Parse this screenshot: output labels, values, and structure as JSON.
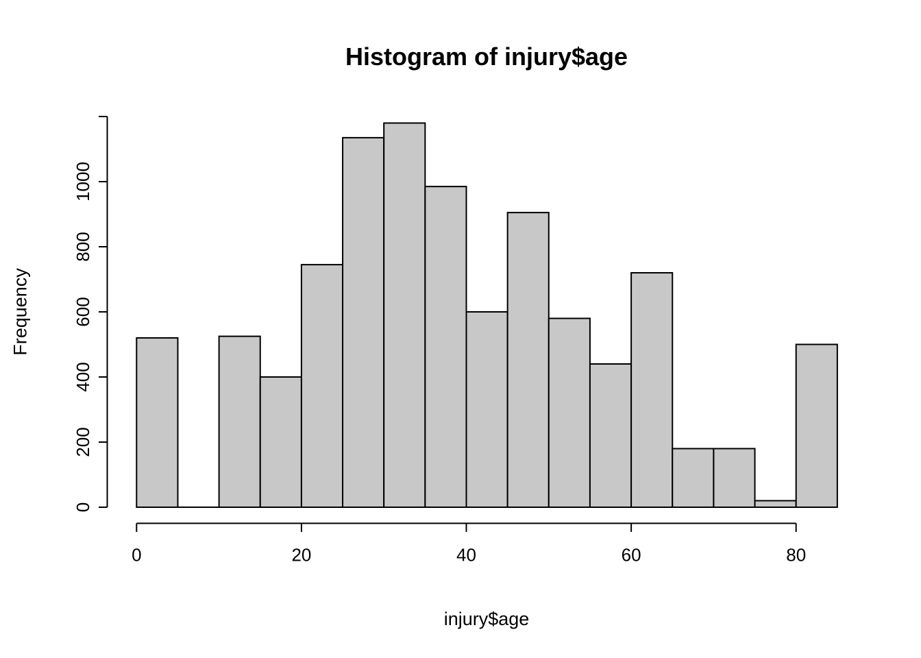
{
  "page": {
    "background": "#ffffff"
  },
  "chart_data": {
    "type": "bar",
    "variant": "histogram",
    "title": "Histogram of injury$age",
    "xlabel": "injury$age",
    "ylabel": "Frequency",
    "breaks": [
      0,
      5,
      10,
      15,
      20,
      25,
      30,
      35,
      40,
      45,
      50,
      55,
      60,
      65,
      70,
      75,
      80,
      85
    ],
    "counts": [
      520,
      0,
      525,
      400,
      745,
      1135,
      1180,
      985,
      600,
      905,
      580,
      440,
      720,
      180,
      180,
      20,
      500
    ],
    "x_ticks": [
      0,
      20,
      40,
      60,
      80
    ],
    "y_ticks": [
      0,
      200,
      400,
      600,
      800,
      1000
    ],
    "xlim": [
      0,
      85
    ],
    "ylim": [
      0,
      1200
    ],
    "y_axis_cap": 1200,
    "grid": false,
    "legend_position": "none",
    "bar_fill": "#C8C8C8",
    "bar_stroke": "#000000",
    "axis_color": "#000000",
    "text_color": "#000000"
  }
}
